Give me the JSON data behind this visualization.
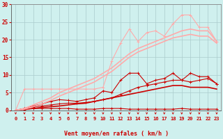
{
  "background_color": "#cff0ee",
  "grid_color": "#aacccc",
  "xlabel": "Vent moyen/en rafales ( km/h )",
  "xlabel_color": "#cc0000",
  "tick_color": "#cc0000",
  "x_values": [
    0,
    1,
    2,
    3,
    4,
    5,
    6,
    7,
    8,
    9,
    10,
    11,
    12,
    13,
    14,
    15,
    16,
    17,
    18,
    19,
    20,
    21,
    22,
    23
  ],
  "ylim": [
    0,
    30
  ],
  "xlim": [
    -0.5,
    23.5
  ],
  "series": [
    {
      "y": [
        0,
        0.2,
        0.5,
        0.5,
        0.5,
        0.5,
        0.5,
        0.3,
        0.3,
        0.3,
        0.5,
        0.5,
        0.5,
        0.3,
        0.3,
        0.3,
        0.3,
        0.3,
        0.3,
        0.5,
        0.3,
        0.3,
        0.3,
        0.3
      ],
      "color": "#cc0000",
      "linewidth": 0.8,
      "marker": "+",
      "markersize": 3
    },
    {
      "y": [
        0,
        0.5,
        1.0,
        1.2,
        1.5,
        1.8,
        2.0,
        2.0,
        2.2,
        2.5,
        3.0,
        3.5,
        4.5,
        5.5,
        6.5,
        7.0,
        7.5,
        8.0,
        8.5,
        8.5,
        8.0,
        8.5,
        9.0,
        7.5
      ],
      "color": "#cc0000",
      "linewidth": 0.8,
      "marker": "+",
      "markersize": 3
    },
    {
      "y": [
        0,
        0.5,
        1.2,
        1.8,
        2.5,
        3.0,
        2.8,
        2.5,
        3.0,
        3.5,
        5.5,
        5.0,
        8.5,
        10.5,
        10.5,
        7.5,
        8.5,
        9.0,
        10.5,
        8.5,
        10.5,
        9.5,
        9.5,
        7.5
      ],
      "color": "#cc0000",
      "linewidth": 0.8,
      "marker": "+",
      "markersize": 3
    },
    {
      "y": [
        0,
        0.3,
        0.5,
        0.8,
        1.0,
        1.2,
        1.5,
        1.8,
        2.0,
        2.5,
        3.0,
        3.5,
        4.0,
        4.5,
        5.0,
        5.5,
        6.0,
        6.5,
        7.0,
        7.0,
        6.5,
        6.5,
        6.5,
        6.0
      ],
      "color": "#cc0000",
      "linewidth": 1.2,
      "marker": null,
      "markersize": 0
    },
    {
      "y": [
        0,
        6.0,
        6.0,
        6.0,
        6.0,
        6.0,
        6.0,
        6.0,
        6.0,
        6.0,
        6.5,
        14.0,
        19.0,
        23.0,
        19.5,
        22.0,
        22.5,
        21.0,
        24.5,
        27.0,
        27.0,
        23.5,
        23.5,
        19.5
      ],
      "color": "#ffaaaa",
      "linewidth": 0.8,
      "marker": "+",
      "markersize": 3
    },
    {
      "y": [
        0,
        0.5,
        1.5,
        2.5,
        3.5,
        5.0,
        6.0,
        7.0,
        8.0,
        9.0,
        10.5,
        12.0,
        14.0,
        16.0,
        17.5,
        18.5,
        19.5,
        20.5,
        21.5,
        22.5,
        23.0,
        22.5,
        22.5,
        19.5
      ],
      "color": "#ffaaaa",
      "linewidth": 1.2,
      "marker": null,
      "markersize": 0
    },
    {
      "y": [
        0,
        0.3,
        1.0,
        1.8,
        2.8,
        4.0,
        5.0,
        6.0,
        7.0,
        8.0,
        9.5,
        11.0,
        13.0,
        15.0,
        16.5,
        17.5,
        18.5,
        19.5,
        20.5,
        21.0,
        21.5,
        21.0,
        21.0,
        19.0
      ],
      "color": "#ffaaaa",
      "linewidth": 1.2,
      "marker": null,
      "markersize": 0
    }
  ],
  "yticks": [
    0,
    5,
    10,
    15,
    20,
    25,
    30
  ],
  "xticks": [
    0,
    1,
    2,
    3,
    4,
    5,
    6,
    7,
    8,
    9,
    10,
    11,
    12,
    13,
    14,
    15,
    16,
    17,
    18,
    19,
    20,
    21,
    22,
    23
  ]
}
